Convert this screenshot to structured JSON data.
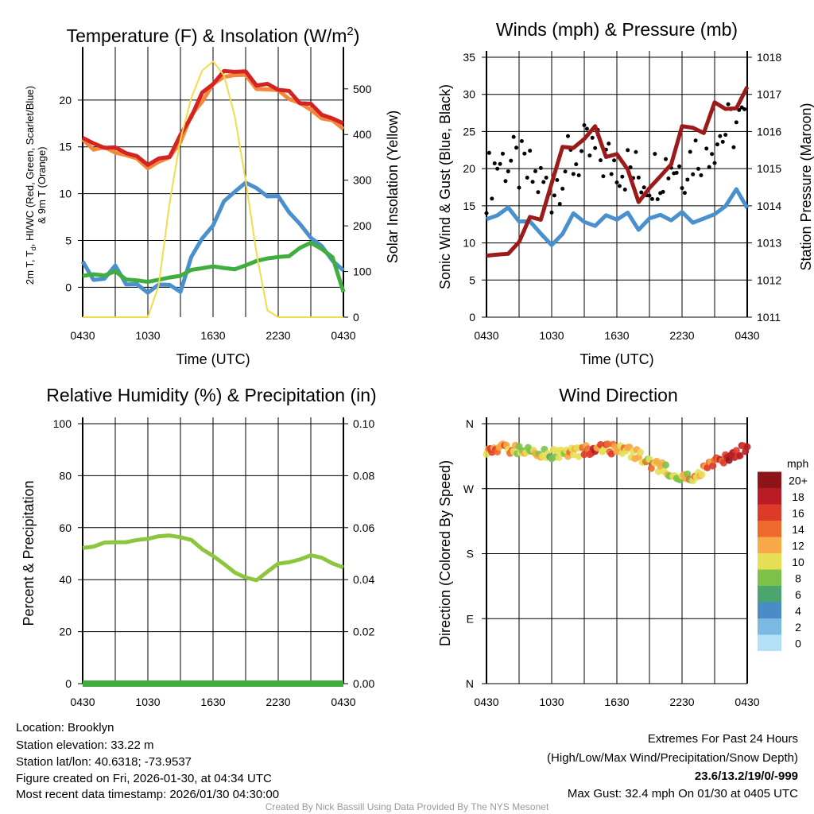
{
  "time_ticks": [
    "0430",
    "1030",
    "1630",
    "2230",
    "0430"
  ],
  "chart_data": [
    {
      "type": "line",
      "title_parts": [
        "Temperature (F) & Insolation (W/m",
        "2",
        ")"
      ],
      "xlabel": "Time (UTC)",
      "ylabel_line1_parts": [
        "2m T, T",
        "d",
        ", HI/WC (Red, Green, Scarlet/Blue)"
      ],
      "ylabel_line2": "& 9m T (Orange)",
      "ylabel_right": "Solar Insolation (Yellow)",
      "ylim": [
        -3.2,
        25
      ],
      "yticks": [
        0,
        5,
        10,
        15,
        20
      ],
      "y2lim": [
        0,
        578
      ],
      "y2ticks": [
        0,
        100,
        200,
        300,
        400,
        500
      ],
      "x_hours": [
        0,
        1,
        2,
        3,
        4,
        5,
        6,
        7,
        8,
        9,
        10,
        11,
        12,
        13,
        14,
        15,
        16,
        17,
        18,
        19,
        20,
        21,
        22,
        23,
        24
      ],
      "series": [
        {
          "name": "9m T",
          "color": "#f4883a",
          "axis": "left",
          "values": [
            15.6,
            15.0,
            14.7,
            14.5,
            14.2,
            13.5,
            13.0,
            13.2,
            13.9,
            15.7,
            18.1,
            20.1,
            21.6,
            22.4,
            22.9,
            22.4,
            21.4,
            21.1,
            20.9,
            20.4,
            19.4,
            19.1,
            18.1,
            17.6,
            17.2
          ]
        },
        {
          "name": "2m T",
          "color": "#d42323",
          "axis": "left",
          "values": [
            16,
            15.3,
            15,
            14.8,
            14.5,
            13.8,
            13.3,
            13.5,
            14.2,
            16,
            18.5,
            20.5,
            22,
            22.8,
            23.3,
            22.8,
            21.8,
            21.5,
            21.3,
            20.8,
            19.8,
            19.5,
            18.5,
            18,
            17.5
          ]
        },
        {
          "name": "HI/WC",
          "color": "#4a90cc",
          "axis": "left",
          "values": [
            3,
            0.5,
            1,
            2.5,
            0,
            0.5,
            -0.5,
            0,
            0.5,
            -0.5,
            3,
            5.5,
            6.5,
            9,
            10.5,
            11,
            10.5,
            10,
            9.5,
            8,
            7,
            5,
            4.5,
            3,
            1.5
          ]
        },
        {
          "name": "Td",
          "color": "#3fae3f",
          "axis": "left",
          "values": [
            1.5,
            1.5,
            1,
            1.5,
            1,
            1,
            0.5,
            0.5,
            1,
            1.5,
            2,
            1.8,
            2,
            2.2,
            2.2,
            2.3,
            2.5,
            3,
            3.5,
            3.5,
            4,
            4.5,
            4.2,
            3.5,
            -0.5
          ]
        },
        {
          "name": "Solar Insolation",
          "color": "#f2dc4a",
          "axis": "right",
          "values": [
            0,
            0,
            0,
            0,
            0,
            0,
            0,
            70,
            250,
            390,
            480,
            540,
            560,
            530,
            440,
            300,
            140,
            15,
            0,
            0,
            0,
            0,
            0,
            0,
            0
          ]
        }
      ]
    },
    {
      "type": "line",
      "title": "Winds (mph) & Pressure (mb)",
      "xlabel": "Time (UTC)",
      "ylabel": "Sonic Wind & Gust (Blue, Black)",
      "ylabel_right": "Station Pressure (Maroon)",
      "ylim": [
        0,
        35
      ],
      "yticks": [
        0,
        5,
        10,
        15,
        20,
        25,
        30,
        35
      ],
      "y2lim": [
        1011,
        1018
      ],
      "y2ticks": [
        1011,
        1012,
        1013,
        1014,
        1015,
        1016,
        1017,
        1018
      ],
      "x_hours": [
        0,
        1,
        2,
        3,
        4,
        5,
        6,
        7,
        8,
        9,
        10,
        11,
        12,
        13,
        14,
        15,
        16,
        17,
        18,
        19,
        20,
        21,
        22,
        23,
        24
      ],
      "series": [
        {
          "name": "Sonic Wind",
          "color": "#4a90cc",
          "axis": "left",
          "values": [
            13,
            14,
            14.5,
            13,
            13,
            11,
            10,
            11,
            14,
            13,
            12,
            14,
            13,
            14,
            12,
            13,
            14,
            13,
            14,
            13,
            13,
            14,
            15,
            17,
            15
          ]
        },
        {
          "name": "Gust",
          "color": "#000000",
          "axis": "left",
          "style": "dots",
          "values": [
            18,
            21,
            21,
            20,
            19,
            18,
            17,
            20,
            21,
            22,
            22,
            21,
            21,
            20,
            19,
            19,
            20,
            21,
            20,
            22,
            23,
            24,
            25,
            26,
            26
          ]
        },
        {
          "name": "Station Pressure",
          "color": "#9b1b1b",
          "axis": "right",
          "values": [
            1012.9,
            1012.4,
            1012.8,
            1013.2,
            1013.4,
            1013.8,
            1014.7,
            1015.3,
            1015.8,
            1015.8,
            1015.9,
            1015.6,
            1015.3,
            1014.8,
            1014.4,
            1014.3,
            1014.7,
            1015.4,
            1015.9,
            1016.1,
            1016.2,
            1016.5,
            1016.7,
            1016.8,
            1016.9
          ]
        }
      ]
    },
    {
      "type": "line",
      "title": "Relative Humidity (%) & Precipitation (in)",
      "ylabel": "Percent & Precipitation",
      "ylim": [
        0,
        100
      ],
      "yticks": [
        0,
        20,
        40,
        60,
        80,
        100
      ],
      "y2lim": [
        0,
        0.1
      ],
      "y2ticks": [
        "0.00",
        "0.02",
        "0.04",
        "0.06",
        "0.08",
        "0.10"
      ],
      "x_hours": [
        0,
        1,
        2,
        3,
        4,
        5,
        6,
        7,
        8,
        9,
        10,
        11,
        12,
        13,
        14,
        15,
        16,
        17,
        18,
        19,
        20,
        21,
        22,
        23,
        24
      ],
      "series": [
        {
          "name": "Relative Humidity",
          "color": "#8cc63f",
          "axis": "left",
          "values": [
            52,
            53,
            54,
            54.5,
            54.5,
            55,
            56,
            56.5,
            57,
            56.5,
            55,
            52,
            49,
            46,
            43,
            40.5,
            40,
            43,
            46,
            47,
            47.5,
            49.5,
            48.5,
            46,
            45
          ]
        },
        {
          "name": "Precipitation",
          "color": "#3fae3f",
          "axis": "right",
          "values": [
            0,
            0,
            0,
            0,
            0,
            0,
            0,
            0,
            0,
            0,
            0,
            0,
            0,
            0,
            0,
            0,
            0,
            0,
            0,
            0,
            0,
            0,
            0,
            0,
            0
          ]
        }
      ]
    },
    {
      "type": "scatter",
      "title": "Wind Direction",
      "ylabel": "Direction (Colored By Speed)",
      "yticks_labels": [
        "N",
        "E",
        "S",
        "W",
        "N"
      ],
      "ylim": [
        0,
        360
      ],
      "x_hours": [
        0,
        1,
        2,
        3,
        4,
        5,
        6,
        7,
        8,
        9,
        10,
        11,
        12,
        13,
        14,
        15,
        16,
        17,
        18,
        19,
        20,
        21,
        22,
        23,
        24
      ],
      "direction_deg": [
        325,
        327,
        326,
        325,
        323,
        320,
        318,
        319,
        320,
        322,
        326,
        325,
        325,
        322,
        317,
        305,
        300,
        293,
        287,
        284,
        295,
        305,
        312,
        320,
        328
      ],
      "speed_mph": [
        14,
        15,
        13,
        12,
        11,
        10,
        9,
        10,
        13,
        15,
        16,
        14,
        13,
        14,
        12,
        12,
        12,
        11,
        10,
        12,
        14,
        16,
        18,
        19,
        20
      ],
      "colorbar": {
        "title": "mph",
        "labels": [
          "0",
          "2",
          "4",
          "6",
          "8",
          "10",
          "12",
          "14",
          "16",
          "18",
          "20+"
        ],
        "colors": [
          "#b3e0f7",
          "#7bb8e3",
          "#4a8dc6",
          "#4aa56e",
          "#7cc24a",
          "#e6df55",
          "#f6a945",
          "#ee6a2c",
          "#de3a2a",
          "#b91c24",
          "#8f1418"
        ]
      }
    }
  ],
  "info": {
    "location": "Location: Brooklyn",
    "elevation": "Station elevation: 33.22 m",
    "latlon": "Station lat/lon: 40.6318; -73.9537",
    "created": "Figure created on Fri, 2026-01-30, at 04:34 UTC",
    "recent": "Most recent data timestamp: 2026/01/30 04:30:00"
  },
  "extremes": {
    "title": "Extremes For Past 24 Hours",
    "subtitle": "(High/Low/Max Wind/Precipitation/Snow Depth)",
    "values": "23.6/13.2/19/0/-999",
    "gust": "Max Gust: 32.4 mph On 01/30 at 0405 UTC",
    "value_color": "#d42323"
  },
  "credit": "Created By Nick Bassill Using Data Provided By The NYS Mesonet"
}
